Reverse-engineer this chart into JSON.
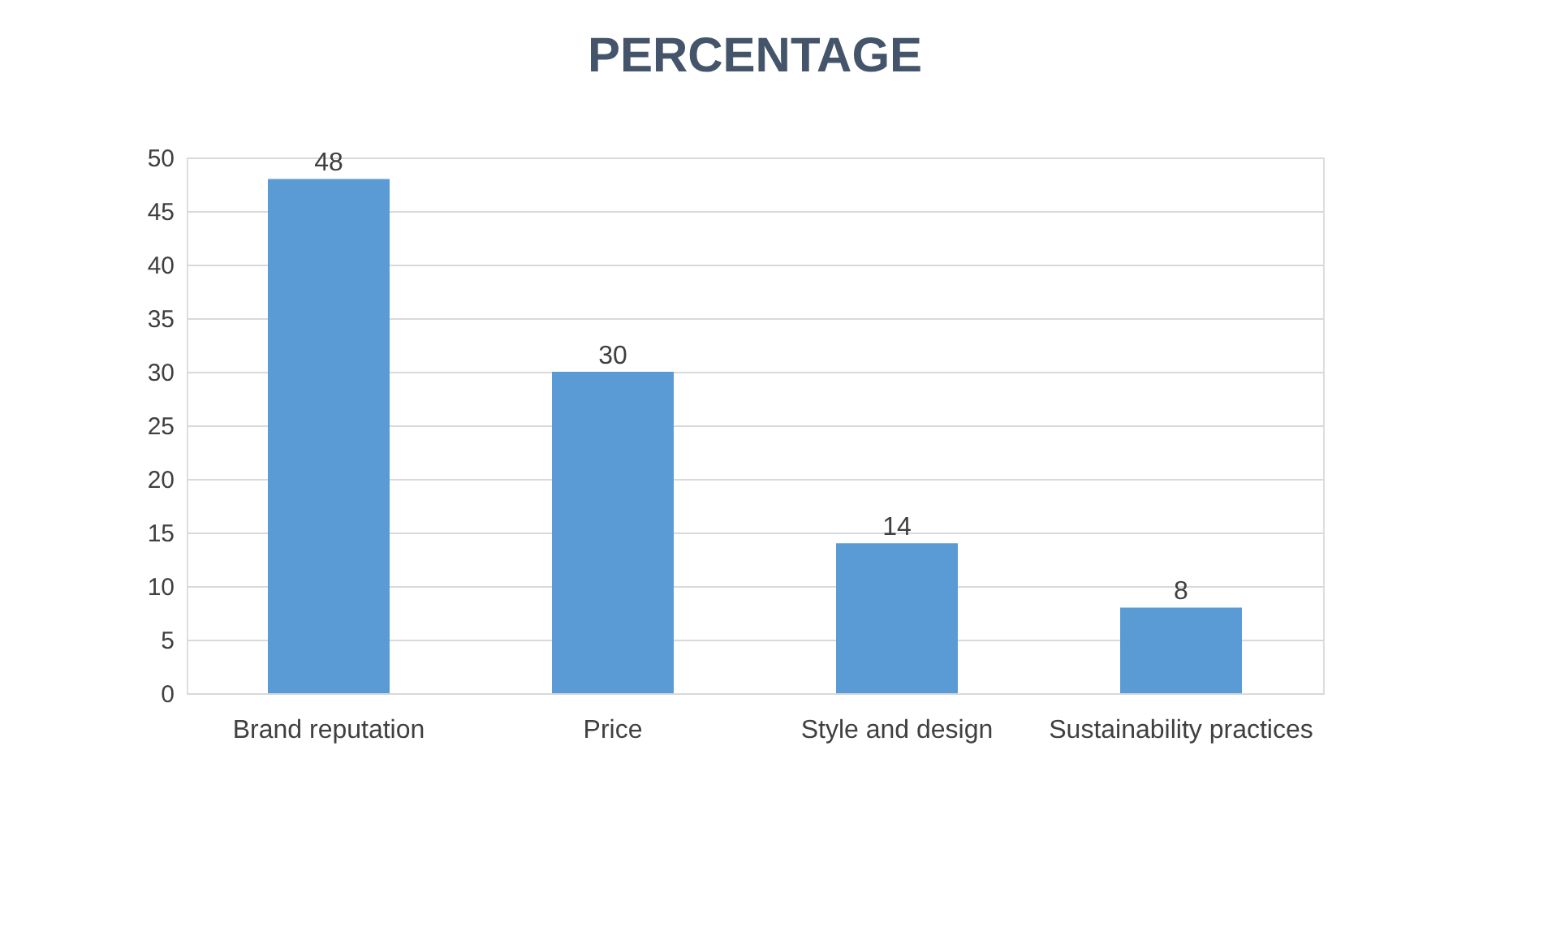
{
  "chart_data": {
    "type": "bar",
    "title": "PERCENTAGE",
    "categories": [
      "Brand reputation",
      "Price",
      "Style and design",
      "Sustainability practices"
    ],
    "values": [
      48,
      30,
      14,
      8
    ],
    "color": "#5b9bd5",
    "ylim": [
      0,
      50
    ],
    "yticks": [
      0,
      5,
      10,
      15,
      20,
      25,
      30,
      35,
      40,
      45,
      50
    ],
    "grid": "y",
    "data_labels": true
  }
}
